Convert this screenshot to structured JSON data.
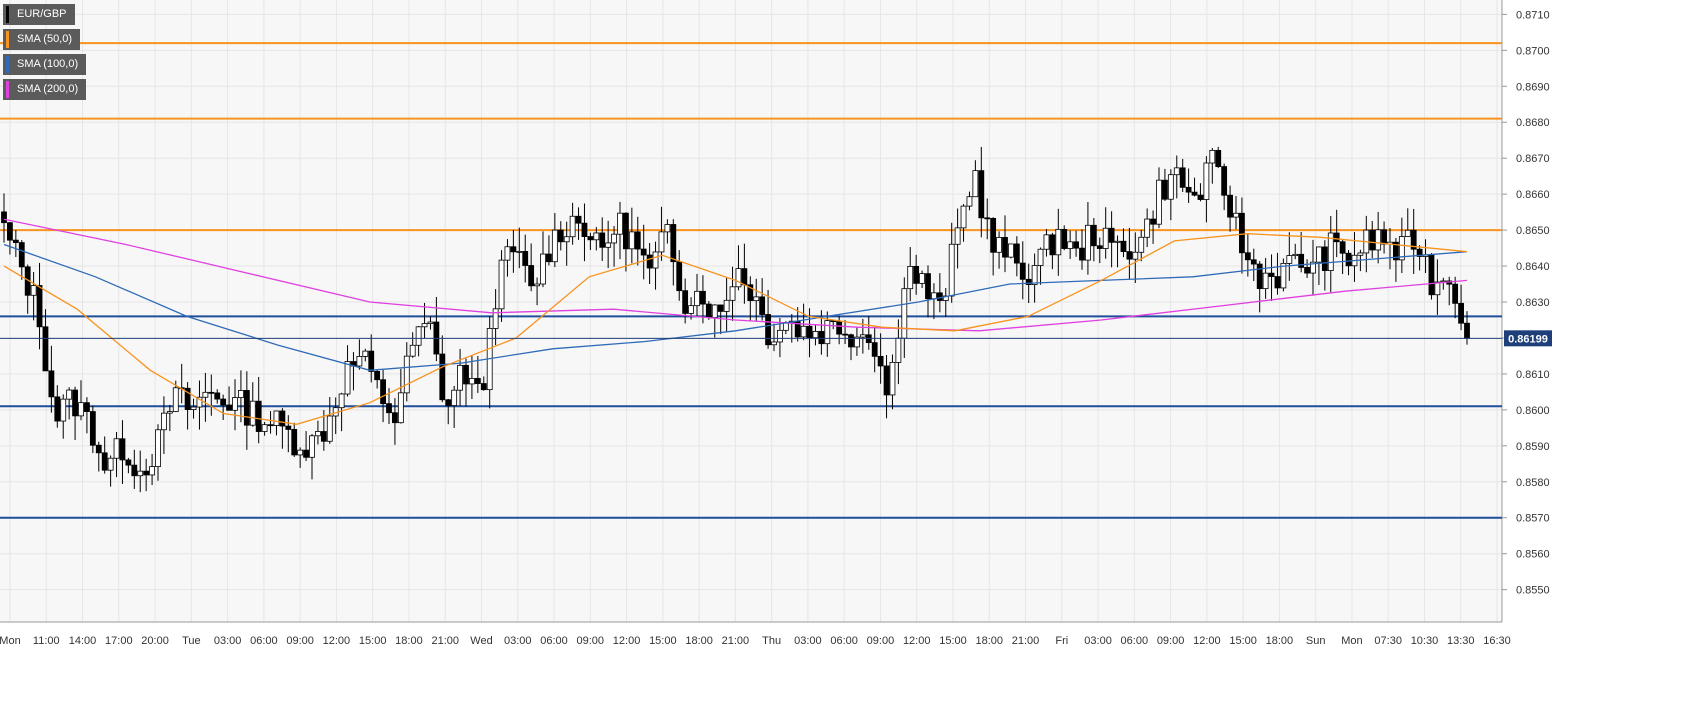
{
  "chart_data": {
    "type": "candlestick",
    "title": "",
    "legend": [
      {
        "label": "EUR/GBP",
        "color": "#000000"
      },
      {
        "label": "SMA (50,0)",
        "color": "#f7931e"
      },
      {
        "label": "SMA (100,0)",
        "color": "#2e6bb8"
      },
      {
        "label": "SMA (200,0)",
        "color": "#e040e0"
      }
    ],
    "ylim": [
      0.8541,
      0.8714
    ],
    "y_ticks": [
      "0.8550",
      "0.8560",
      "0.8570",
      "0.8580",
      "0.8590",
      "0.8600",
      "0.8610",
      "0.8620",
      "0.8630",
      "0.8640",
      "0.8650",
      "0.8660",
      "0.8670",
      "0.8680",
      "0.8690",
      "0.8700",
      "0.8710"
    ],
    "x_ticks": [
      "Mon",
      "11:00",
      "14:00",
      "17:00",
      "20:00",
      "Tue",
      "03:00",
      "06:00",
      "09:00",
      "12:00",
      "15:00",
      "18:00",
      "21:00",
      "Wed",
      "03:00",
      "06:00",
      "09:00",
      "12:00",
      "15:00",
      "18:00",
      "21:00",
      "Thu",
      "03:00",
      "06:00",
      "09:00",
      "12:00",
      "15:00",
      "18:00",
      "21:00",
      "Fri",
      "03:00",
      "06:00",
      "09:00",
      "12:00",
      "15:00",
      "18:00",
      "Sun",
      "Mon",
      "07:30",
      "10:30",
      "13:30",
      "16:30"
    ],
    "current_price": "0.86199",
    "horizontal_levels": [
      {
        "value": 0.8702,
        "color": "#f7931e"
      },
      {
        "value": 0.8681,
        "color": "#f7931e"
      },
      {
        "value": 0.865,
        "color": "#f7931e"
      },
      {
        "value": 0.8626,
        "color": "#1f4e9a"
      },
      {
        "value": 0.8601,
        "color": "#1f4e9a"
      },
      {
        "value": 0.857,
        "color": "#1f4e9a"
      }
    ],
    "price_path": [
      0.865,
      0.864,
      0.8628,
      0.8598,
      0.8603,
      0.8597,
      0.8584,
      0.859,
      0.8583,
      0.859,
      0.8604,
      0.86,
      0.8605,
      0.8603,
      0.8601,
      0.8598,
      0.8596,
      0.8592,
      0.859,
      0.8596,
      0.861,
      0.8615,
      0.8605,
      0.8598,
      0.8618,
      0.8624,
      0.86,
      0.8612,
      0.8602,
      0.8636,
      0.8645,
      0.8633,
      0.8645,
      0.8652,
      0.8653,
      0.8643,
      0.8652,
      0.8647,
      0.8637,
      0.865,
      0.8631,
      0.8633,
      0.8625,
      0.864,
      0.8633,
      0.8621,
      0.8625,
      0.8622,
      0.8622,
      0.8624,
      0.8621,
      0.8622,
      0.8603,
      0.864,
      0.8635,
      0.8627,
      0.8648,
      0.8667,
      0.8646,
      0.8643,
      0.8638,
      0.8642,
      0.865,
      0.8642,
      0.865,
      0.8645,
      0.8645,
      0.8648,
      0.8662,
      0.8665,
      0.8658,
      0.8668,
      0.8658,
      0.8642,
      0.8637,
      0.8638,
      0.8641,
      0.864,
      0.8645,
      0.8642,
      0.8646,
      0.8648,
      0.8643,
      0.8648,
      0.8635,
      0.8638,
      0.862
    ],
    "sma_50": [
      0.864,
      0.8628,
      0.8611,
      0.8599,
      0.8596,
      0.8602,
      0.8612,
      0.862,
      0.8637,
      0.8643,
      0.8636,
      0.8626,
      0.8623,
      0.8622,
      0.8626,
      0.8636,
      0.8647,
      0.8649,
      0.8648,
      0.8646,
      0.8644
    ],
    "sma_100": [
      0.8646,
      0.8637,
      0.8626,
      0.8618,
      0.8611,
      0.8613,
      0.8617,
      0.8619,
      0.8622,
      0.8626,
      0.863,
      0.8635,
      0.8636,
      0.8637,
      0.864,
      0.8642,
      0.8644
    ],
    "sma_200": [
      0.8653,
      0.8646,
      0.8638,
      0.863,
      0.8627,
      0.8628,
      0.8625,
      0.8623,
      0.8622,
      0.8625,
      0.8629,
      0.8633,
      0.8636
    ]
  }
}
